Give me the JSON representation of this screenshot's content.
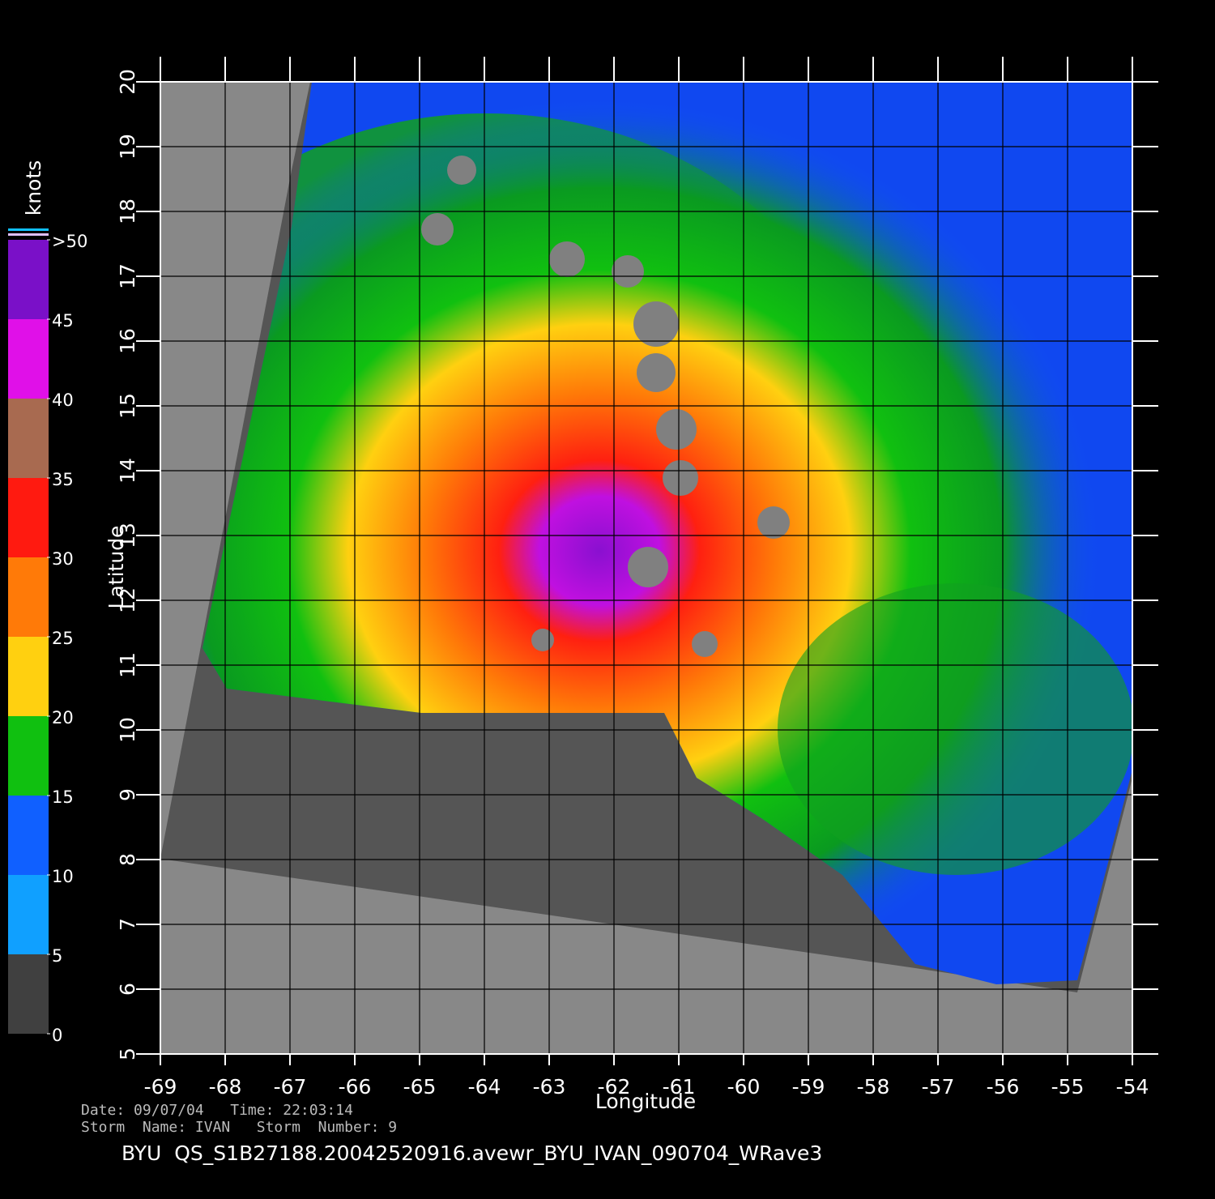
{
  "map": {
    "xlim": [
      -69,
      -54
    ],
    "ylim": [
      5,
      20
    ],
    "xticks": [
      -69,
      -68,
      -67,
      -66,
      -65,
      -64,
      -63,
      -62,
      -61,
      -60,
      -59,
      -58,
      -57,
      -56,
      -55,
      -54
    ],
    "yticks": [
      5,
      6,
      7,
      8,
      9,
      10,
      11,
      12,
      13,
      14,
      15,
      16,
      17,
      18,
      19,
      20
    ],
    "x_label": "Longitude",
    "y_label": "Latitude"
  },
  "colorbar": {
    "title": "knots",
    "ticks": [
      {
        "value": 50,
        "label": ">50"
      },
      45,
      40,
      35,
      30,
      25,
      20,
      15,
      10,
      5,
      0
    ],
    "colors": [
      "#7a10c8",
      "#e010e8",
      "#a86a50",
      "#ff1a10",
      "#ff7a08",
      "#ffd010",
      "#10c010",
      "#1060ff",
      "#10a0ff",
      "#404040"
    ]
  },
  "footer": {
    "line1": "Date: 09/07/04   Time: 22:03:14",
    "line2": "Storm  Name: IVAN   Storm  Number: 9",
    "file": "BYU  QS_S1B27188.20042520916.avewr_BYU_IVAN_090704_WRave3"
  }
}
